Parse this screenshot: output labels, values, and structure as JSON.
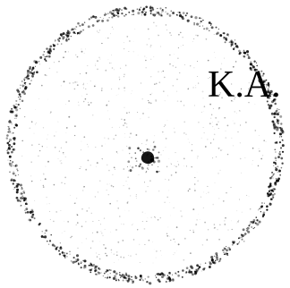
{
  "seal": {
    "text": "K.A.",
    "ink_color": "#000000",
    "background_color": "#ffffff"
  }
}
